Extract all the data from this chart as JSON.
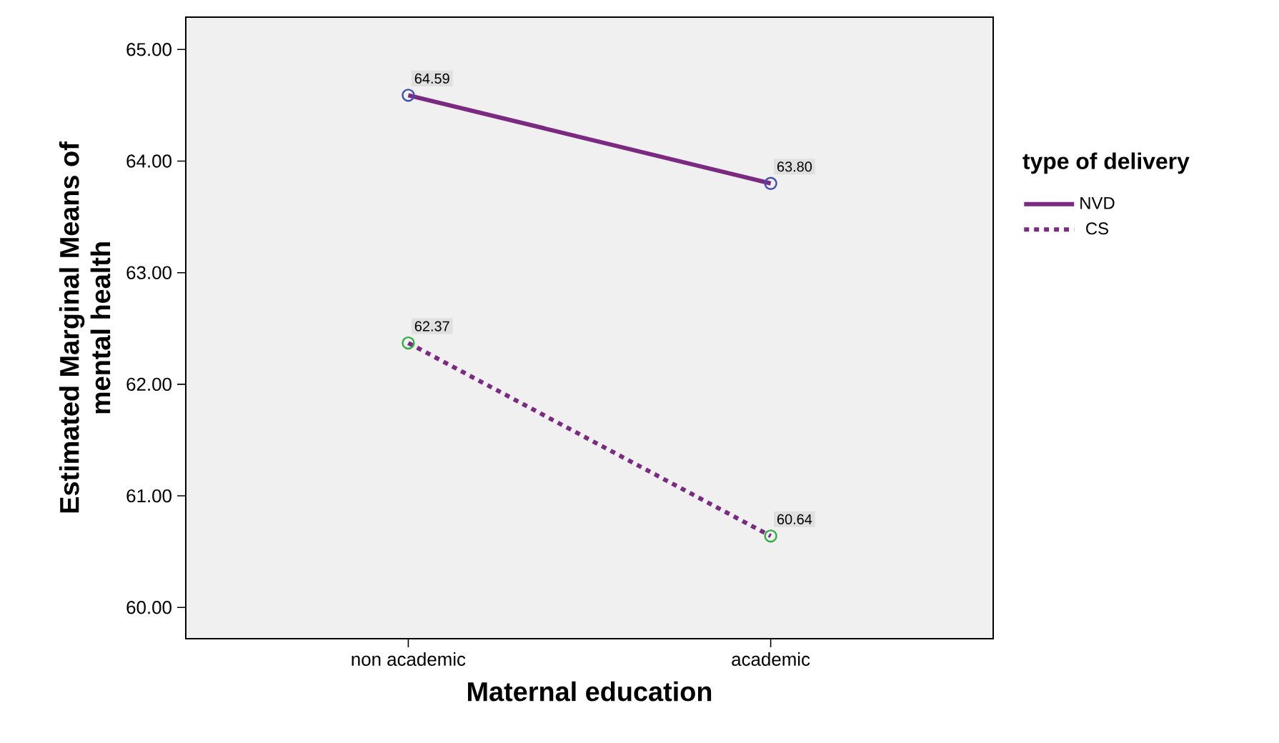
{
  "chart_data": {
    "type": "line",
    "xlabel": "Maternal education",
    "ylabel": "Estimated Marginal Means of mental health",
    "legend_title": "type of delivery",
    "categories": [
      "non academic",
      "academic"
    ],
    "series": [
      {
        "name": "NVD",
        "color": "#7b2a82",
        "colors": [
          "#4050b0",
          "#4050b0"
        ],
        "line_style": "solid",
        "values": [
          64.59,
          63.8
        ],
        "value_labels": [
          "64.59",
          "63.80"
        ]
      },
      {
        "name": "CS",
        "color": "#7b2a82",
        "colors": [
          "#30b040",
          "#30b040"
        ],
        "line_style": "dotted",
        "values": [
          62.37,
          60.64
        ],
        "value_labels": [
          "62.37",
          "60.64"
        ]
      }
    ],
    "ylim": [
      59.72,
      65.29
    ],
    "yticks": [
      {
        "value": 60,
        "label": "60.00"
      },
      {
        "value": 61,
        "label": "61.00"
      },
      {
        "value": 62,
        "label": "62.00"
      },
      {
        "value": 63,
        "label": "63.00"
      },
      {
        "value": 64,
        "label": "64.00"
      },
      {
        "value": 65,
        "label": "65.00"
      }
    ],
    "marker": "circle",
    "legend": "right",
    "grid": false
  }
}
